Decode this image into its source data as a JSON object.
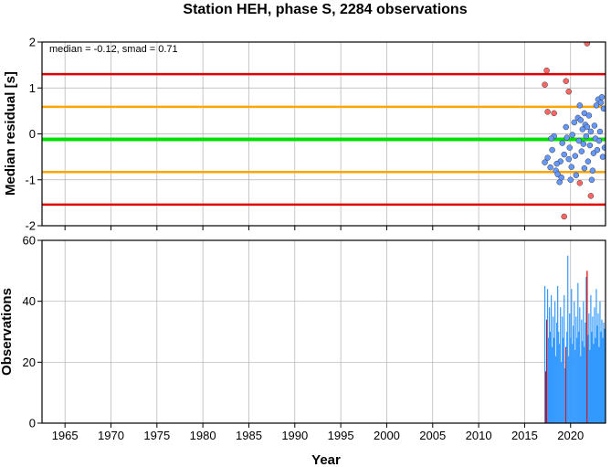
{
  "chart_data": {
    "title": "Station HEH, phase S, 2284 observations",
    "xlabel": "Year",
    "x_ticks": [
      1965,
      1970,
      1975,
      1980,
      1985,
      1990,
      1995,
      2000,
      2005,
      2010,
      2015,
      2020
    ],
    "xlim": [
      1962.5,
      2023.8
    ],
    "colors": {
      "grid": "#b0b0b0",
      "median": "#00e000",
      "smad": "#ffa500",
      "outlier_line": "#e00000",
      "point": "#6699ff",
      "point_out": "#ff6666",
      "bar": "#3399ff",
      "bar_red": "#e00000"
    },
    "panels": [
      {
        "type": "scatter",
        "ylabel": "Median residual [s]",
        "ylim": [
          -2,
          2
        ],
        "y_ticks": [
          -2,
          -1,
          0,
          1,
          2
        ],
        "annotation": "median = -0.12, smad = 0.71",
        "hlines": [
          {
            "y": 1.3,
            "role": "outlier_line"
          },
          {
            "y": 0.59,
            "role": "smad"
          },
          {
            "y": -0.12,
            "role": "median"
          },
          {
            "y": -0.83,
            "role": "smad"
          },
          {
            "y": -1.54,
            "role": "outlier_line"
          }
        ],
        "points": [
          [
            2017.4,
            1.38,
            1
          ],
          [
            2017.2,
            1.07,
            1
          ],
          [
            2017.5,
            0.48,
            1
          ],
          [
            2018.2,
            0.45,
            1
          ],
          [
            2019.5,
            1.15,
            1
          ],
          [
            2019.8,
            0.92,
            1
          ],
          [
            2021.8,
            1.97,
            1
          ],
          [
            2019.3,
            -1.8,
            1
          ],
          [
            2021.0,
            -1.07,
            1
          ],
          [
            2022.2,
            -1.35,
            1
          ],
          [
            2017.2,
            -0.62,
            0
          ],
          [
            2017.5,
            -0.52,
            0
          ],
          [
            2017.8,
            -0.73,
            0
          ],
          [
            2018.0,
            -0.35,
            0
          ],
          [
            2018.2,
            -0.05,
            0
          ],
          [
            2018.4,
            -0.8,
            0
          ],
          [
            2018.6,
            -0.88,
            0
          ],
          [
            2018.8,
            -1.05,
            0
          ],
          [
            2018.9,
            -0.6,
            0
          ],
          [
            2019.1,
            -0.2,
            0
          ],
          [
            2019.3,
            -0.45,
            0
          ],
          [
            2019.5,
            0.15,
            0
          ],
          [
            2019.6,
            -0.08,
            0
          ],
          [
            2019.8,
            -0.55,
            0
          ],
          [
            2019.9,
            -0.3,
            0
          ],
          [
            2020.1,
            -0.72,
            0
          ],
          [
            2020.2,
            -0.02,
            0
          ],
          [
            2020.4,
            0.25,
            0
          ],
          [
            2020.5,
            -0.48,
            0
          ],
          [
            2020.6,
            -0.9,
            0
          ],
          [
            2020.8,
            0.35,
            0
          ],
          [
            2020.9,
            -0.15,
            0
          ],
          [
            2021.0,
            0.62,
            0
          ],
          [
            2021.1,
            0.3,
            0
          ],
          [
            2021.2,
            -0.38,
            0
          ],
          [
            2021.3,
            0.1,
            0
          ],
          [
            2021.4,
            -0.22,
            0
          ],
          [
            2021.5,
            0.45,
            0
          ],
          [
            2021.6,
            0.2,
            0
          ],
          [
            2021.7,
            -0.05,
            0
          ],
          [
            2021.8,
            0.15,
            0
          ],
          [
            2021.9,
            -0.6,
            0
          ],
          [
            2022.0,
            0.4,
            0
          ],
          [
            2022.1,
            -0.25,
            0
          ],
          [
            2022.2,
            0.05,
            0
          ],
          [
            2022.4,
            -0.8,
            0
          ],
          [
            2022.5,
            -0.42,
            0
          ],
          [
            2022.6,
            0.18,
            0
          ],
          [
            2022.7,
            -0.1,
            0
          ],
          [
            2022.8,
            0.62,
            0
          ],
          [
            2022.9,
            -0.35,
            0
          ],
          [
            2023.0,
            0.75,
            0
          ],
          [
            2023.1,
            -0.15,
            0
          ],
          [
            2023.2,
            0.05,
            0
          ],
          [
            2023.3,
            0.68,
            0
          ],
          [
            2023.4,
            0.8,
            0
          ],
          [
            2023.5,
            -0.5,
            0
          ],
          [
            2023.6,
            0.55,
            0
          ],
          [
            2023.7,
            -0.3,
            0
          ],
          [
            2020.0,
            -1.0,
            0
          ],
          [
            2018.5,
            -0.65,
            0
          ],
          [
            2019.0,
            -0.95,
            0
          ],
          [
            2021.5,
            -0.75,
            0
          ],
          [
            2022.3,
            -1.0,
            0
          ],
          [
            2017.9,
            -0.1,
            0
          ]
        ]
      },
      {
        "type": "bar",
        "ylabel": "Observations",
        "ylim": [
          0,
          60
        ],
        "y_ticks": [
          0,
          20,
          40,
          60
        ],
        "bars": [
          [
            2017.2,
            45,
            0
          ],
          [
            2017.3,
            17,
            1
          ],
          [
            2017.4,
            34,
            1
          ],
          [
            2017.5,
            44,
            0
          ],
          [
            2017.6,
            28,
            0
          ],
          [
            2017.7,
            38,
            0
          ],
          [
            2017.8,
            30,
            0
          ],
          [
            2017.9,
            42,
            0
          ],
          [
            2018.0,
            25,
            0
          ],
          [
            2018.1,
            35,
            0
          ],
          [
            2018.2,
            28,
            0
          ],
          [
            2018.3,
            40,
            0
          ],
          [
            2018.4,
            22,
            0
          ],
          [
            2018.5,
            33,
            0
          ],
          [
            2018.6,
            45,
            0
          ],
          [
            2018.7,
            30,
            0
          ],
          [
            2018.8,
            26,
            0
          ],
          [
            2018.9,
            38,
            0
          ],
          [
            2019.0,
            20,
            0
          ],
          [
            2019.1,
            35,
            0
          ],
          [
            2019.2,
            28,
            0
          ],
          [
            2019.3,
            42,
            0
          ],
          [
            2019.4,
            18,
            0
          ],
          [
            2019.5,
            25,
            1
          ],
          [
            2019.6,
            30,
            0
          ],
          [
            2019.7,
            55,
            0
          ],
          [
            2019.8,
            22,
            0
          ],
          [
            2019.9,
            36,
            0
          ],
          [
            2020.0,
            28,
            0
          ],
          [
            2020.1,
            44,
            0
          ],
          [
            2020.2,
            26,
            0
          ],
          [
            2020.3,
            32,
            0
          ],
          [
            2020.4,
            40,
            0
          ],
          [
            2020.5,
            24,
            0
          ],
          [
            2020.6,
            35,
            0
          ],
          [
            2020.7,
            28,
            0
          ],
          [
            2020.8,
            46,
            0
          ],
          [
            2020.9,
            30,
            0
          ],
          [
            2021.0,
            38,
            0
          ],
          [
            2021.1,
            22,
            0
          ],
          [
            2021.2,
            34,
            0
          ],
          [
            2021.3,
            27,
            0
          ],
          [
            2021.4,
            40,
            0
          ],
          [
            2021.5,
            25,
            0
          ],
          [
            2021.6,
            33,
            0
          ],
          [
            2021.7,
            48,
            0
          ],
          [
            2021.8,
            50,
            1
          ],
          [
            2021.9,
            29,
            0
          ],
          [
            2022.0,
            36,
            0
          ],
          [
            2022.1,
            24,
            0
          ],
          [
            2022.2,
            42,
            0
          ],
          [
            2022.3,
            30,
            0
          ],
          [
            2022.4,
            35,
            0
          ],
          [
            2022.5,
            26,
            0
          ],
          [
            2022.6,
            38,
            0
          ],
          [
            2022.7,
            28,
            0
          ],
          [
            2022.8,
            44,
            0
          ],
          [
            2022.9,
            32,
            0
          ],
          [
            2023.0,
            36,
            0
          ],
          [
            2023.1,
            25,
            0
          ],
          [
            2023.2,
            40,
            0
          ],
          [
            2023.3,
            30,
            0
          ],
          [
            2023.4,
            34,
            0
          ],
          [
            2023.5,
            28,
            0
          ],
          [
            2023.6,
            33,
            0
          ],
          [
            2023.7,
            31,
            0
          ]
        ]
      }
    ]
  }
}
